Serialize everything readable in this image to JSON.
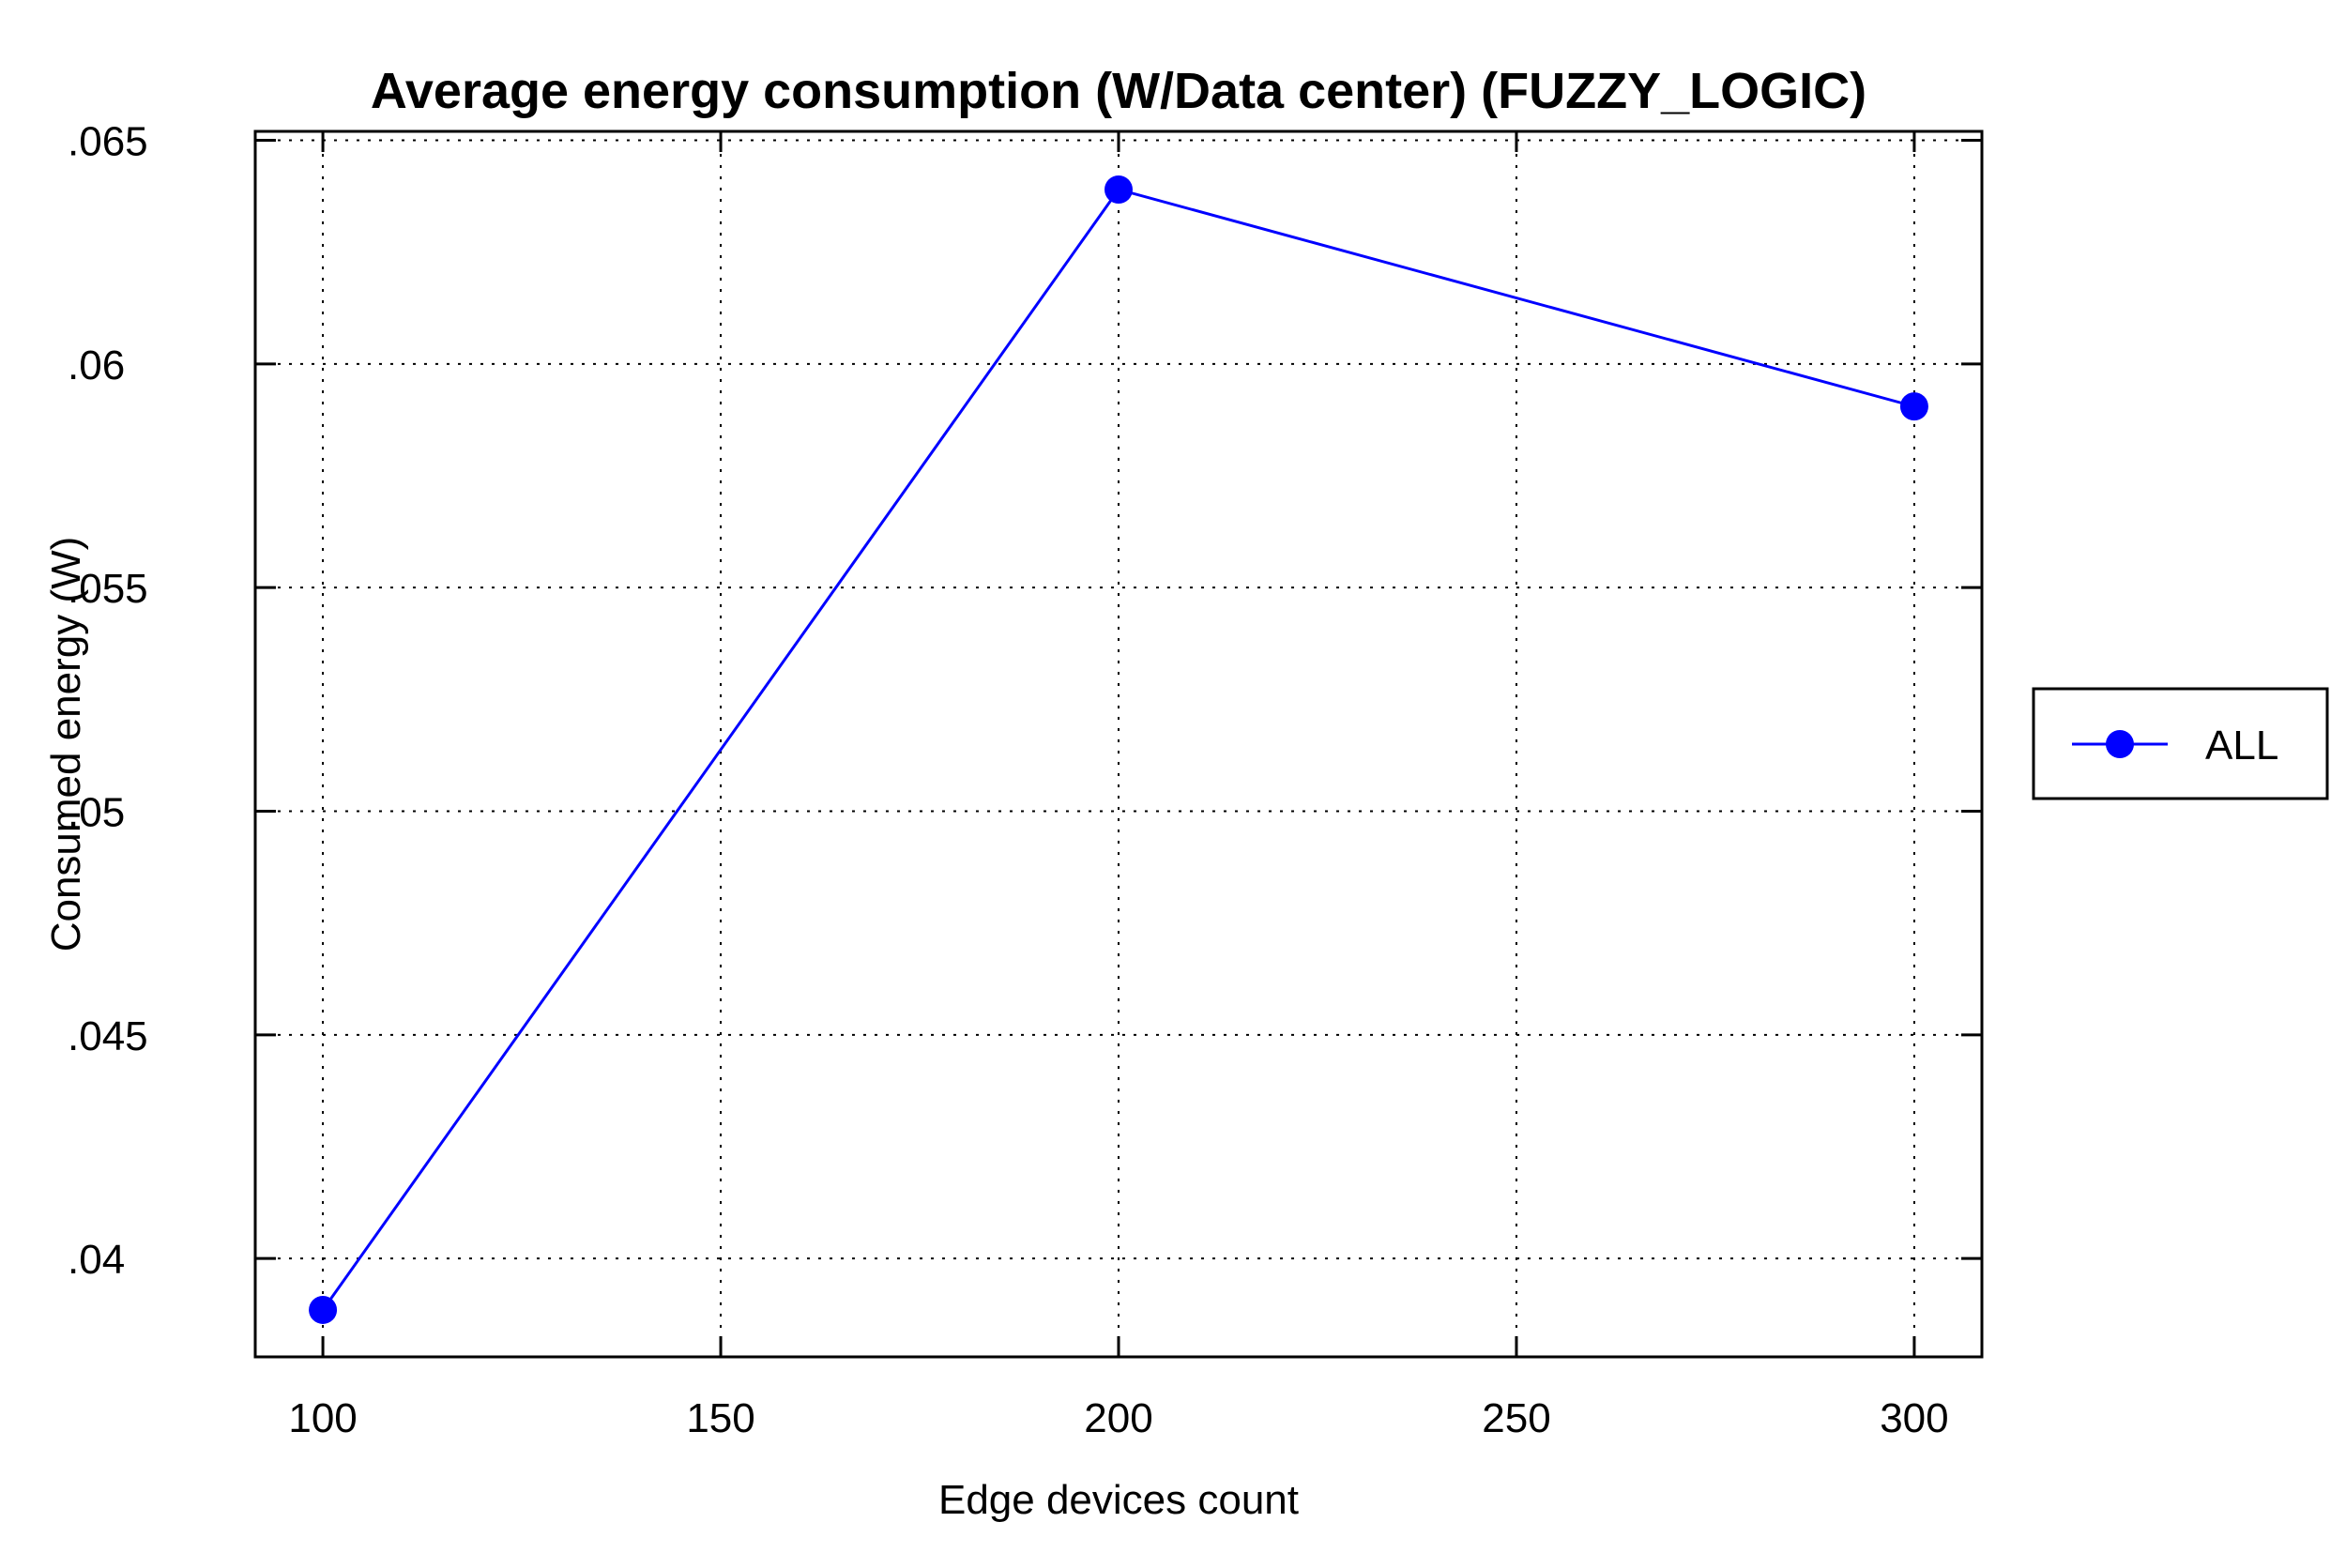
{
  "chart_data": {
    "type": "line",
    "title": "Average energy consumption (W/Data center) (FUZZY_LOGIC)",
    "xlabel": "Edge devices count",
    "ylabel": "Consumed energy (W)",
    "x": [
      100,
      200,
      300
    ],
    "series": [
      {
        "name": "ALL",
        "color": "#0000ff",
        "marker": "circle",
        "values": [
          0.03885,
          0.0639,
          0.05905
        ]
      }
    ],
    "xlim": [
      91.5,
      308.5
    ],
    "ylim": [
      0.0378,
      0.0652
    ],
    "xticks": [
      100,
      150,
      200,
      250,
      300
    ],
    "xtick_labels": [
      "100",
      "150",
      "200",
      "250",
      "300"
    ],
    "yticks": [
      0.04,
      0.045,
      0.05,
      0.055,
      0.06,
      0.065
    ],
    "ytick_labels": [
      ".04",
      ".045",
      ".05",
      ".055",
      ".06",
      ".065"
    ],
    "grid": true,
    "legend_position": "right"
  }
}
